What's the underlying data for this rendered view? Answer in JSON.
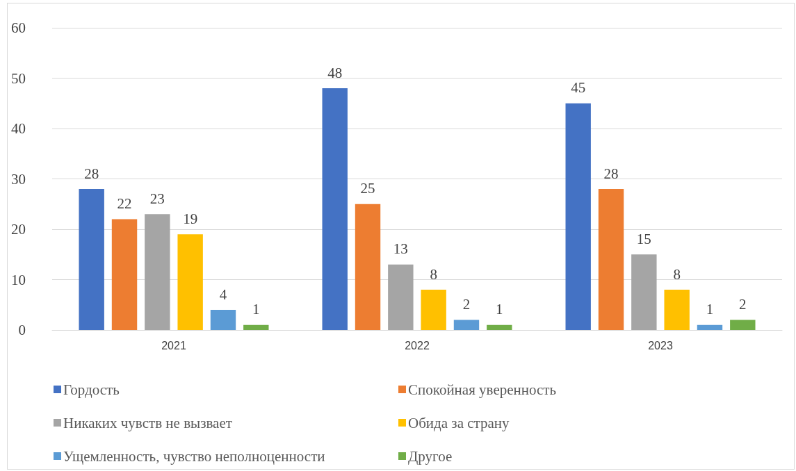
{
  "chart_data": {
    "type": "bar",
    "categories": [
      "2021",
      "2022",
      "2023"
    ],
    "series": [
      {
        "name": "Гордость",
        "color": "#4472c4",
        "values": [
          28,
          48,
          45
        ]
      },
      {
        "name": "Спокойная уверенность",
        "color": "#ed7d31",
        "values": [
          22,
          25,
          28
        ]
      },
      {
        "name": "Никаких чувств не вызвает",
        "color": "#a5a5a5",
        "values": [
          23,
          13,
          15
        ]
      },
      {
        "name": "Обида за страну",
        "color": "#ffc000",
        "values": [
          19,
          8,
          8
        ]
      },
      {
        "name": "Ущемленность, чувство неполноценности",
        "color": "#5b9bd5",
        "values": [
          4,
          2,
          1
        ]
      },
      {
        "name": "Другое",
        "color": "#70ad47",
        "values": [
          1,
          1,
          2
        ]
      }
    ],
    "ylim": [
      0,
      60
    ],
    "yticks": [
      0,
      10,
      20,
      30,
      40,
      50,
      60
    ],
    "grid": "y",
    "data_labels": true,
    "legend": "bottom"
  }
}
